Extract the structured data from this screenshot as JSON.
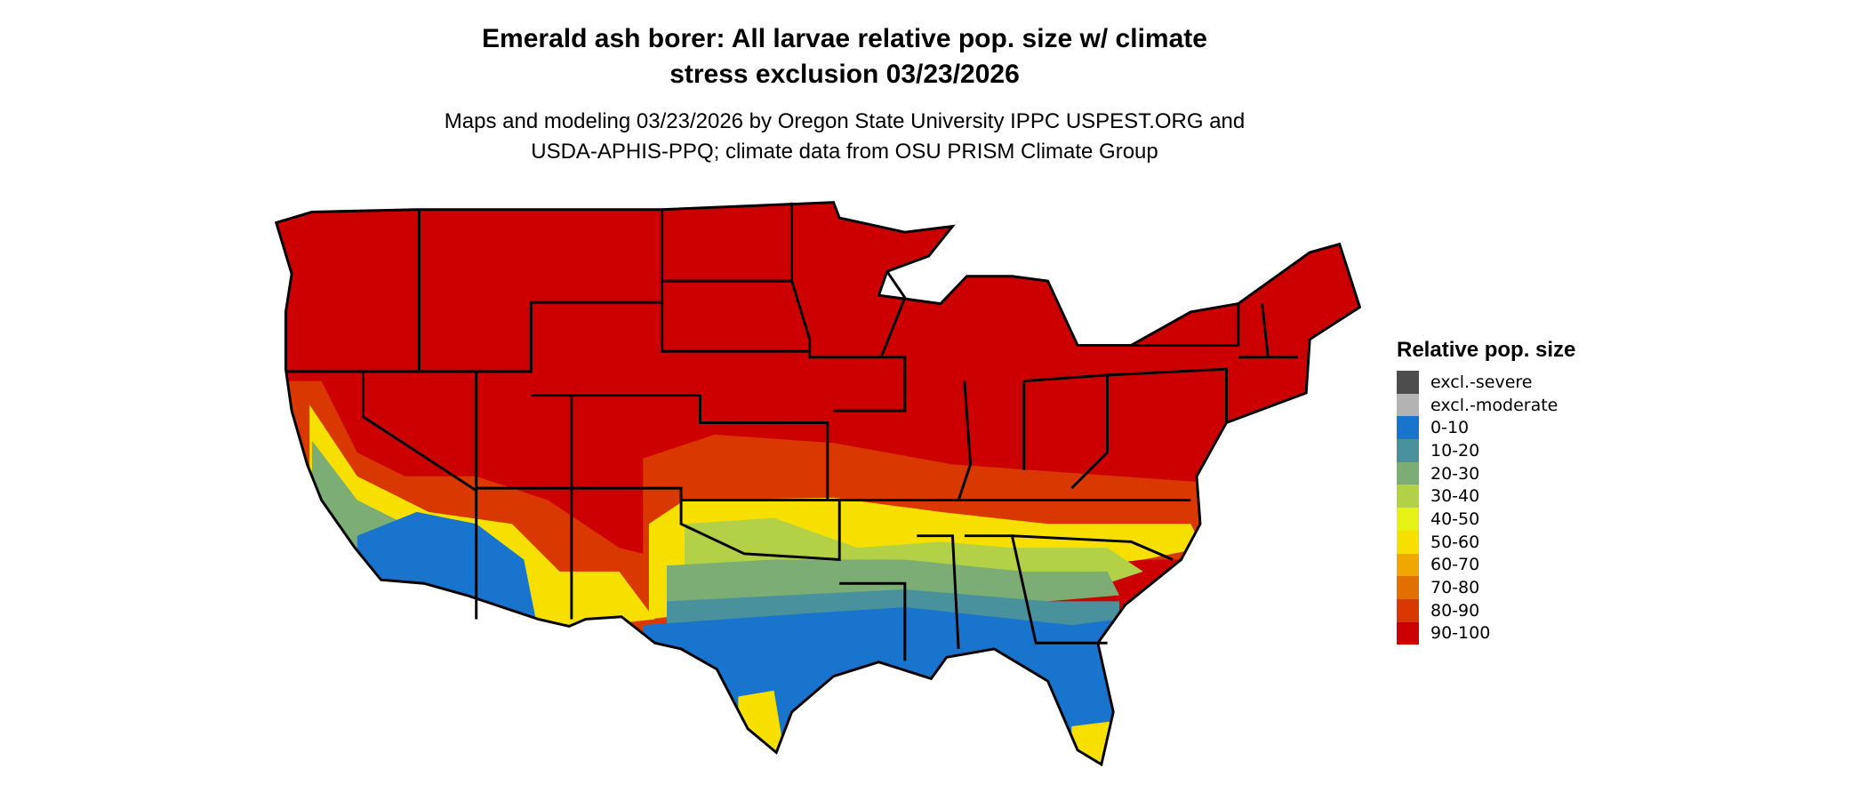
{
  "title_lines": [
    "Emerald ash borer: All larvae relative pop. size w/ climate",
    "stress exclusion 03/23/2026"
  ],
  "subtitle_lines": [
    "Maps and modeling 03/23/2026 by Oregon State University IPPC USPEST.ORG and",
    "USDA-APHIS-PPQ; climate data from OSU PRISM Climate Group"
  ],
  "legend": {
    "title": "Relative pop. size",
    "items": [
      {
        "label": "excl.-severe",
        "color": "#4d4d4d"
      },
      {
        "label": "excl.-moderate",
        "color": "#b3b3b3"
      },
      {
        "label": "0-10",
        "color": "#1874cd"
      },
      {
        "label": "10-20",
        "color": "#4a919e"
      },
      {
        "label": "20-30",
        "color": "#7cad75"
      },
      {
        "label": "30-40",
        "color": "#b2d147"
      },
      {
        "label": "40-50",
        "color": "#e5f216"
      },
      {
        "label": "50-60",
        "color": "#f7e000"
      },
      {
        "label": "60-70",
        "color": "#f0a800"
      },
      {
        "label": "70-80",
        "color": "#e27000"
      },
      {
        "label": "80-90",
        "color": "#d93800"
      },
      {
        "label": "90-100",
        "color": "#cd0000"
      }
    ]
  },
  "map": {
    "region": "contiguous United States",
    "dominant_class": "90-100",
    "southern_gradient": "decreasing from 90-100 in the north to 0-10 along the Gulf Coast and southwestern deserts"
  }
}
